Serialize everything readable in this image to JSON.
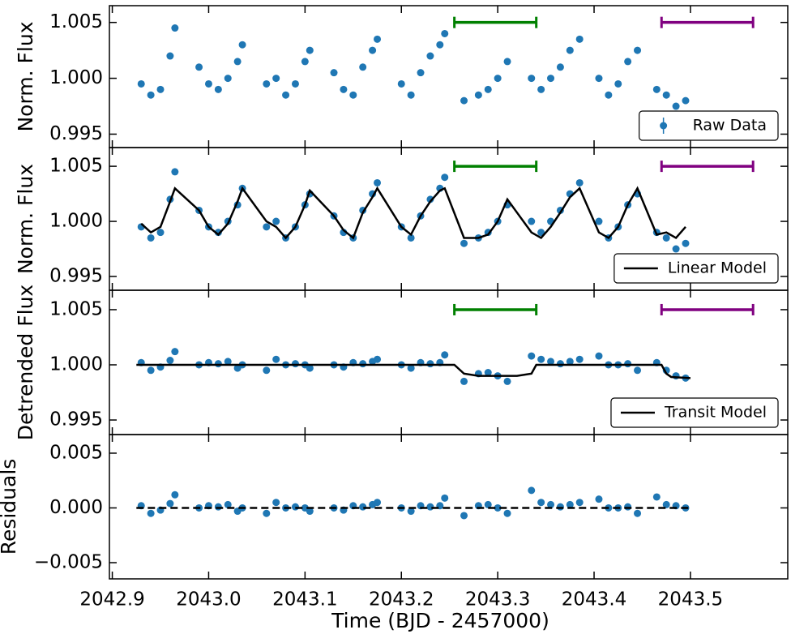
{
  "chart_data": [
    {
      "type": "scatter",
      "ylabel": "Norm. Flux",
      "xlim": [
        2042.897,
        2043.601
      ],
      "xticks": [
        2042.9,
        2043,
        2043.1,
        2043.2,
        2043.3,
        2043.4,
        2043.5
      ],
      "ylim": [
        0.9938,
        1.0065
      ],
      "yticks": [
        {
          "value": 0.995,
          "label": "0.995"
        },
        {
          "value": 1,
          "label": "1.000"
        },
        {
          "value": 1.005,
          "label": "1.005"
        }
      ],
      "legend": "lower right",
      "spans": [
        {
          "x": [
            2043.255,
            2043.34
          ],
          "y": 1.005,
          "color": "#008000"
        },
        {
          "x": [
            2043.47,
            2043.565
          ],
          "y": 1.005,
          "color": "#800080"
        }
      ],
      "series": [
        {
          "name": "Raw Data",
          "mode": "markers",
          "color": "#1f77b4",
          "x": [
            2042.93,
            2042.94,
            2042.95,
            2042.96,
            2042.965,
            2042.99,
            2043.0,
            2043.01,
            2043.02,
            2043.03,
            2043.035,
            2043.06,
            2043.07,
            2043.08,
            2043.09,
            2043.1,
            2043.105,
            2043.13,
            2043.14,
            2043.15,
            2043.16,
            2043.17,
            2043.175,
            2043.2,
            2043.21,
            2043.22,
            2043.23,
            2043.24,
            2043.245,
            2043.265,
            2043.28,
            2043.29,
            2043.3,
            2043.31,
            2043.335,
            2043.345,
            2043.355,
            2043.365,
            2043.375,
            2043.385,
            2043.405,
            2043.415,
            2043.425,
            2043.435,
            2043.445,
            2043.465,
            2043.475,
            2043.485,
            2043.495
          ],
          "values": [
            0.9995,
            0.9985,
            0.999,
            1.002,
            1.0045,
            1.001,
            0.9995,
            0.999,
            1.0,
            1.0015,
            1.003,
            0.9995,
            1.0,
            0.9985,
            0.9995,
            1.0015,
            1.0025,
            1.0005,
            0.999,
            0.9985,
            1.001,
            1.0025,
            1.0035,
            0.9995,
            0.9985,
            1.0005,
            1.002,
            1.003,
            1.004,
            0.998,
            0.9985,
            0.999,
            1.0,
            1.0015,
            1.0,
            0.999,
            1.0,
            1.001,
            1.0025,
            1.0035,
            1.0,
            0.9985,
            0.9995,
            1.0015,
            1.0025,
            0.999,
            0.9985,
            0.9975,
            0.998
          ]
        }
      ]
    },
    {
      "type": "scatter",
      "ylabel": "Norm. Flux",
      "xlim": [
        2042.897,
        2043.601
      ],
      "xticks": [
        2042.9,
        2043,
        2043.1,
        2043.2,
        2043.3,
        2043.4,
        2043.5
      ],
      "ylim": [
        0.99375,
        1.0067
      ],
      "yticks": [
        {
          "value": 0.995,
          "label": "0.995"
        },
        {
          "value": 1,
          "label": "1.000"
        },
        {
          "value": 1.005,
          "label": "1.005"
        }
      ],
      "legend": "lower right",
      "spans": [
        {
          "x": [
            2043.255,
            2043.34
          ],
          "y": 1.005,
          "color": "#008000"
        },
        {
          "x": [
            2043.47,
            2043.565
          ],
          "y": 1.005,
          "color": "#800080"
        }
      ],
      "series": [
        {
          "mode": "markers",
          "color": "#1f77b4",
          "x": [
            2042.93,
            2042.94,
            2042.95,
            2042.96,
            2042.965,
            2042.99,
            2043.0,
            2043.01,
            2043.02,
            2043.03,
            2043.035,
            2043.06,
            2043.07,
            2043.08,
            2043.09,
            2043.1,
            2043.105,
            2043.13,
            2043.14,
            2043.15,
            2043.16,
            2043.17,
            2043.175,
            2043.2,
            2043.21,
            2043.22,
            2043.23,
            2043.24,
            2043.245,
            2043.265,
            2043.28,
            2043.29,
            2043.3,
            2043.31,
            2043.335,
            2043.345,
            2043.355,
            2043.365,
            2043.375,
            2043.385,
            2043.405,
            2043.415,
            2043.425,
            2043.435,
            2043.445,
            2043.465,
            2043.475,
            2043.485,
            2043.495
          ],
          "values": [
            0.9995,
            0.9985,
            0.999,
            1.002,
            1.0045,
            1.001,
            0.9995,
            0.999,
            1.0,
            1.0015,
            1.003,
            0.9995,
            1.0,
            0.9985,
            0.9995,
            1.0015,
            1.0025,
            1.0005,
            0.999,
            0.9985,
            1.001,
            1.0025,
            1.0035,
            0.9995,
            0.9985,
            1.0005,
            1.002,
            1.003,
            1.004,
            0.998,
            0.9985,
            0.999,
            1.0,
            1.0015,
            1.0,
            0.999,
            1.0,
            1.001,
            1.0025,
            1.0035,
            1.0,
            0.9985,
            0.9995,
            1.0015,
            1.0025,
            0.999,
            0.9985,
            0.9975,
            0.998
          ]
        },
        {
          "name": "Linear Model",
          "mode": "line",
          "color": "#000000",
          "x": [
            2042.93,
            2042.94,
            2042.95,
            2042.96,
            2042.965,
            2042.99,
            2043.0,
            2043.01,
            2043.02,
            2043.03,
            2043.035,
            2043.06,
            2043.07,
            2043.08,
            2043.09,
            2043.1,
            2043.105,
            2043.13,
            2043.14,
            2043.15,
            2043.16,
            2043.17,
            2043.175,
            2043.2,
            2043.21,
            2043.22,
            2043.23,
            2043.24,
            2043.245,
            2043.265,
            2043.28,
            2043.29,
            2043.3,
            2043.31,
            2043.335,
            2043.345,
            2043.355,
            2043.365,
            2043.375,
            2043.385,
            2043.405,
            2043.415,
            2043.425,
            2043.435,
            2043.445,
            2043.465,
            2043.475,
            2043.485,
            2043.495
          ],
          "values": [
            0.9998,
            0.999,
            0.9995,
            1.0018,
            1.003,
            1.001,
            0.9995,
            0.9988,
            0.9998,
            1.0018,
            1.003,
            1.0,
            0.9995,
            0.9985,
            0.9995,
            1.0015,
            1.0028,
            1.0005,
            0.9992,
            0.9985,
            1.0008,
            1.0022,
            1.003,
            0.9995,
            0.9988,
            1.0005,
            1.0018,
            1.0028,
            1.003,
            0.9985,
            0.9985,
            0.9988,
            1.0,
            1.002,
            0.999,
            0.9985,
            0.9995,
            1.0008,
            1.0022,
            1.003,
            0.999,
            0.9985,
            0.9995,
            1.0015,
            1.003,
            0.9988,
            0.999,
            0.9985,
            0.9995
          ]
        }
      ]
    },
    {
      "type": "scatter",
      "ylabel": "Detrended Flux",
      "xlim": [
        2042.897,
        2043.601
      ],
      "xticks": [
        2042.9,
        2043,
        2043.1,
        2043.2,
        2043.3,
        2043.4,
        2043.5
      ],
      "ylim": [
        0.99368,
        1.00676
      ],
      "yticks": [
        {
          "value": 0.995,
          "label": "0.995"
        },
        {
          "value": 1,
          "label": "1.000"
        },
        {
          "value": 1.005,
          "label": "1.005"
        }
      ],
      "legend": "lower right",
      "spans": [
        {
          "x": [
            2043.255,
            2043.34
          ],
          "y": 1.005,
          "color": "#008000"
        },
        {
          "x": [
            2043.47,
            2043.565
          ],
          "y": 1.005,
          "color": "#800080"
        }
      ],
      "series": [
        {
          "mode": "markers",
          "color": "#1f77b4",
          "x": [
            2042.93,
            2042.94,
            2042.95,
            2042.96,
            2042.965,
            2042.99,
            2043.0,
            2043.01,
            2043.02,
            2043.03,
            2043.035,
            2043.06,
            2043.07,
            2043.08,
            2043.09,
            2043.1,
            2043.105,
            2043.13,
            2043.14,
            2043.15,
            2043.16,
            2043.17,
            2043.175,
            2043.2,
            2043.21,
            2043.22,
            2043.23,
            2043.24,
            2043.245,
            2043.265,
            2043.28,
            2043.29,
            2043.3,
            2043.31,
            2043.335,
            2043.345,
            2043.355,
            2043.365,
            2043.375,
            2043.385,
            2043.405,
            2043.415,
            2043.425,
            2043.435,
            2043.445,
            2043.465,
            2043.475,
            2043.485,
            2043.495
          ],
          "values": [
            1.0002,
            0.9995,
            0.9998,
            1.0004,
            1.0012,
            1.0,
            1.0002,
            1.0001,
            1.0003,
            0.9997,
            1.0,
            0.9995,
            1.0005,
            1.0,
            1.0001,
            1.0,
            0.9997,
            1.0,
            0.9998,
            1.0002,
            1.0001,
            1.0003,
            1.0005,
            1.0,
            0.9997,
            1.0002,
            1.0001,
            1.0002,
            1.0009,
            0.9985,
            0.9992,
            0.9993,
            0.999,
            0.9985,
            1.0008,
            1.0005,
            1.0003,
            1.0001,
            1.0003,
            1.0005,
            1.0008,
            1.0,
            1.0,
            1.0001,
            0.9995,
            1.0002,
            0.9995,
            0.999,
            0.9988
          ]
        },
        {
          "name": "Transit Model",
          "mode": "line",
          "color": "#000000",
          "x": [
            2042.925,
            2043.255,
            2043.265,
            2043.28,
            2043.32,
            2043.335,
            2043.34,
            2043.47,
            2043.475,
            2043.48,
            2043.5
          ],
          "values": [
            1.0,
            1.0,
            0.9992,
            0.999,
            0.999,
            0.9992,
            1.0,
            1.0,
            0.9992,
            0.9989,
            0.9988
          ]
        }
      ]
    },
    {
      "type": "scatter",
      "ylabel": "Residuals",
      "xlabel": "Time (BJD - 2457000)",
      "xlim": [
        2042.897,
        2043.601
      ],
      "xticks": [
        2042.9,
        {
          "value": 2043,
          "label": "2043.0"
        },
        2043.1,
        2043.2,
        2043.3,
        2043.4,
        2043.5
      ],
      "ylim": [
        -0.00648,
        0.0067
      ],
      "yticks": [
        {
          "value": -0.005,
          "label": "−0.005"
        },
        {
          "value": 0,
          "label": "0.000"
        },
        0.005
      ],
      "series": [
        {
          "mode": "markers",
          "color": "#1f77b4",
          "x": [
            2042.93,
            2042.94,
            2042.95,
            2042.96,
            2042.965,
            2042.99,
            2043.0,
            2043.01,
            2043.02,
            2043.03,
            2043.035,
            2043.06,
            2043.07,
            2043.08,
            2043.09,
            2043.1,
            2043.105,
            2043.13,
            2043.14,
            2043.15,
            2043.16,
            2043.17,
            2043.175,
            2043.2,
            2043.21,
            2043.22,
            2043.23,
            2043.24,
            2043.245,
            2043.265,
            2043.28,
            2043.29,
            2043.3,
            2043.31,
            2043.335,
            2043.345,
            2043.355,
            2043.365,
            2043.375,
            2043.385,
            2043.405,
            2043.415,
            2043.425,
            2043.435,
            2043.445,
            2043.465,
            2043.475,
            2043.485,
            2043.495
          ],
          "values": [
            0.0002,
            -0.0005,
            -0.0002,
            0.0004,
            0.0012,
            0,
            0.0002,
            0.0001,
            0.0003,
            -0.0003,
            0,
            -0.0005,
            0.0005,
            0,
            0.0001,
            0,
            -0.0003,
            0,
            -0.0002,
            0.0002,
            0.0001,
            0.0003,
            0.0005,
            0,
            -0.0003,
            0.0002,
            0.0001,
            0.0002,
            0.0009,
            -0.0007,
            0.0002,
            0.0003,
            0,
            -0.0005,
            0.0016,
            0.0005,
            0.0003,
            0.0001,
            0.0003,
            0.0005,
            0.0008,
            0,
            0,
            0.0001,
            -0.0005,
            0.001,
            0.0003,
            0.0002,
            0
          ]
        },
        {
          "mode": "line",
          "dash": true,
          "color": "#000000",
          "x": [
            2042.925,
            2043.5
          ],
          "values": [
            0,
            0
          ]
        }
      ]
    }
  ]
}
